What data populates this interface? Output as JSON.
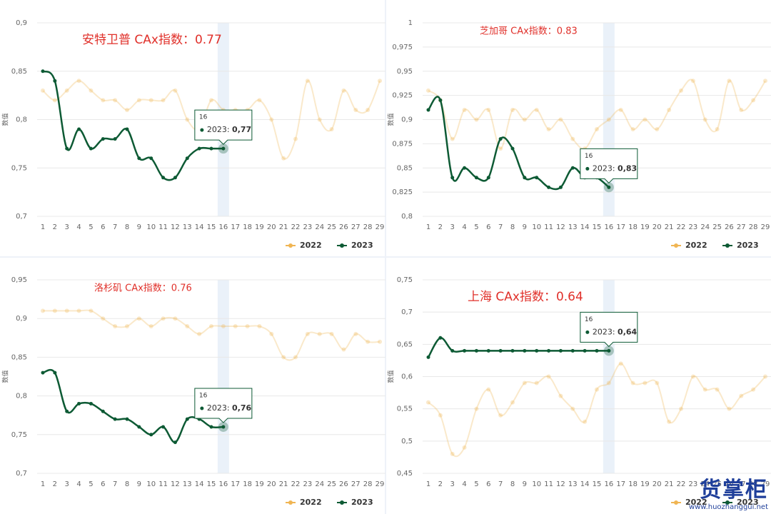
{
  "chart_data": [
    {
      "type": "line",
      "title": "安特卫普  CAx指数：0.77",
      "y_label": "数值",
      "categories": [
        "1",
        "2",
        "3",
        "4",
        "5",
        "6",
        "7",
        "8",
        "9",
        "10",
        "11",
        "12",
        "13",
        "14",
        "15",
        "16",
        "17",
        "18",
        "19",
        "20",
        "21",
        "22",
        "23",
        "24",
        "25",
        "26",
        "27",
        "28",
        "29"
      ],
      "series": [
        {
          "name": "2022",
          "color": "#f0b553",
          "values": [
            0.83,
            0.82,
            0.83,
            0.84,
            0.83,
            0.82,
            0.82,
            0.81,
            0.82,
            0.82,
            0.82,
            0.83,
            0.8,
            0.79,
            0.82,
            0.81,
            0.81,
            0.81,
            0.82,
            0.8,
            0.76,
            0.78,
            0.84,
            0.8,
            0.79,
            0.83,
            0.81,
            0.81,
            0.84
          ]
        },
        {
          "name": "2023",
          "color": "#0d5a34",
          "values": [
            0.85,
            0.84,
            0.77,
            0.79,
            0.77,
            0.78,
            0.78,
            0.79,
            0.76,
            0.76,
            0.74,
            0.74,
            0.76,
            0.77,
            0.77,
            0.77,
            null,
            null,
            null,
            null,
            null,
            null,
            null,
            null,
            null,
            null,
            null,
            null,
            null
          ]
        }
      ],
      "ylim": [
        0.7,
        0.9
      ],
      "yticks": [
        {
          "value": 0.7,
          "label": "0,7"
        },
        {
          "value": 0.75,
          "label": "0,75"
        },
        {
          "value": 0.8,
          "label": "0,8"
        },
        {
          "value": 0.85,
          "label": "0,85"
        },
        {
          "value": 0.9,
          "label": "0,9"
        }
      ],
      "grid": true,
      "legend": "bottom-right",
      "title_size": "large",
      "tooltip": {
        "x": "16",
        "series": "2023",
        "value": {
          "value": 0.77,
          "label": "0,77"
        }
      }
    },
    {
      "type": "line",
      "title": "芝加哥  CAx指数：0.83",
      "y_label": "数值",
      "categories": [
        "1",
        "2",
        "3",
        "4",
        "5",
        "6",
        "7",
        "8",
        "9",
        "10",
        "11",
        "12",
        "13",
        "14",
        "15",
        "16",
        "17",
        "18",
        "19",
        "20",
        "21",
        "22",
        "23",
        "24",
        "25",
        "26",
        "27",
        "28",
        "29"
      ],
      "series": [
        {
          "name": "2022",
          "color": "#f0b553",
          "values": [
            0.93,
            0.92,
            0.88,
            0.91,
            0.9,
            0.91,
            0.87,
            0.91,
            0.9,
            0.91,
            0.89,
            0.9,
            0.88,
            0.87,
            0.89,
            0.9,
            0.91,
            0.89,
            0.9,
            0.89,
            0.91,
            0.93,
            0.94,
            0.9,
            0.89,
            0.94,
            0.91,
            0.92,
            0.94
          ]
        },
        {
          "name": "2023",
          "color": "#0d5a34",
          "values": [
            0.91,
            0.92,
            0.84,
            0.85,
            0.84,
            0.84,
            0.88,
            0.87,
            0.84,
            0.84,
            0.83,
            0.83,
            0.85,
            0.84,
            0.84,
            0.83,
            null,
            null,
            null,
            null,
            null,
            null,
            null,
            null,
            null,
            null,
            null,
            null,
            null
          ]
        }
      ],
      "ylim": [
        0.8,
        1
      ],
      "yticks": [
        {
          "value": 0.8,
          "label": "0,8"
        },
        {
          "value": 0.825,
          "label": "0,825"
        },
        {
          "value": 0.85,
          "label": "0,85"
        },
        {
          "value": 0.875,
          "label": "0,875"
        },
        {
          "value": 0.9,
          "label": "0,9"
        },
        {
          "value": 0.925,
          "label": "0,925"
        },
        {
          "value": 0.95,
          "label": "0,95"
        },
        {
          "value": 0.975,
          "label": "0,975"
        },
        1
      ],
      "grid": true,
      "legend": "bottom-right",
      "title_size": "small",
      "tooltip": {
        "x": "16",
        "series": "2023",
        "value": {
          "value": 0.83,
          "label": "0,83"
        }
      }
    },
    {
      "type": "line",
      "title": "洛杉矶  CAx指数：0.76",
      "y_label": "数值",
      "categories": [
        "1",
        "2",
        "3",
        "4",
        "5",
        "6",
        "7",
        "8",
        "9",
        "10",
        "11",
        "12",
        "13",
        "14",
        "15",
        "16",
        "17",
        "18",
        "19",
        "20",
        "21",
        "22",
        "23",
        "24",
        "25",
        "26",
        "27",
        "28",
        "29"
      ],
      "series": [
        {
          "name": "2022",
          "color": "#f0b553",
          "values": [
            0.91,
            0.91,
            0.91,
            0.91,
            0.91,
            0.9,
            0.89,
            0.89,
            0.9,
            0.89,
            0.9,
            0.9,
            0.89,
            0.88,
            0.89,
            0.89,
            0.89,
            0.89,
            0.89,
            0.88,
            0.85,
            0.85,
            0.88,
            0.88,
            0.88,
            0.86,
            0.88,
            0.87,
            0.87
          ]
        },
        {
          "name": "2023",
          "color": "#0d5a34",
          "values": [
            0.83,
            0.83,
            0.78,
            0.79,
            0.79,
            0.78,
            0.77,
            0.77,
            0.76,
            0.75,
            0.76,
            0.74,
            0.77,
            0.77,
            0.76,
            0.76,
            null,
            null,
            null,
            null,
            null,
            null,
            null,
            null,
            null,
            null,
            null,
            null,
            null
          ]
        }
      ],
      "ylim": [
        0.7,
        0.95
      ],
      "yticks": [
        {
          "value": 0.7,
          "label": "0,7"
        },
        {
          "value": 0.75,
          "label": "0,75"
        },
        {
          "value": 0.8,
          "label": "0,8"
        },
        {
          "value": 0.85,
          "label": "0,85"
        },
        {
          "value": 0.9,
          "label": "0,9"
        },
        {
          "value": 0.95,
          "label": "0,95"
        }
      ],
      "grid": true,
      "legend": "bottom-right",
      "title_size": "small",
      "tooltip": {
        "x": "16",
        "series": "2023",
        "value": {
          "value": 0.76,
          "label": "0,76"
        }
      }
    },
    {
      "type": "line",
      "title": "上海  CAx指数：0.64",
      "y_label": "数值",
      "categories": [
        "1",
        "2",
        "3",
        "4",
        "5",
        "6",
        "7",
        "8",
        "9",
        "10",
        "11",
        "12",
        "13",
        "14",
        "15",
        "16",
        "17",
        "18",
        "19",
        "20",
        "21",
        "22",
        "23",
        "24",
        "25",
        "26",
        "27",
        "28",
        "29"
      ],
      "series": [
        {
          "name": "2022",
          "color": "#f0b553",
          "values": [
            0.56,
            0.54,
            0.48,
            0.49,
            0.55,
            0.58,
            0.54,
            0.56,
            0.59,
            0.59,
            0.6,
            0.57,
            0.55,
            0.53,
            0.58,
            0.59,
            0.62,
            0.59,
            0.59,
            0.59,
            0.53,
            0.55,
            0.6,
            0.58,
            0.58,
            0.55,
            0.57,
            0.58,
            0.6
          ]
        },
        {
          "name": "2023",
          "color": "#0d5a34",
          "values": [
            0.63,
            0.66,
            0.64,
            0.64,
            0.64,
            0.64,
            0.64,
            0.64,
            0.64,
            0.64,
            0.64,
            0.64,
            0.64,
            0.64,
            0.64,
            0.64,
            null,
            null,
            null,
            null,
            null,
            null,
            null,
            null,
            null,
            null,
            null,
            null,
            null
          ]
        }
      ],
      "ylim": [
        0.45,
        0.75
      ],
      "yticks": [
        {
          "value": 0.45,
          "label": "0,45"
        },
        {
          "value": 0.5,
          "label": "0,5"
        },
        {
          "value": 0.55,
          "label": "0,55"
        },
        {
          "value": 0.6,
          "label": "0,6"
        },
        {
          "value": 0.65,
          "label": "0,65"
        },
        {
          "value": 0.7,
          "label": "0,7"
        },
        {
          "value": 0.75,
          "label": "0,75"
        }
      ],
      "grid": true,
      "legend": "bottom-right",
      "title_size": "large",
      "tooltip": {
        "x": "16",
        "series": "2023",
        "value": {
          "value": 0.64,
          "label": "0,64"
        }
      }
    }
  ],
  "watermark": {
    "text": "货掌柜",
    "url": "www.huozhanggui.net"
  }
}
